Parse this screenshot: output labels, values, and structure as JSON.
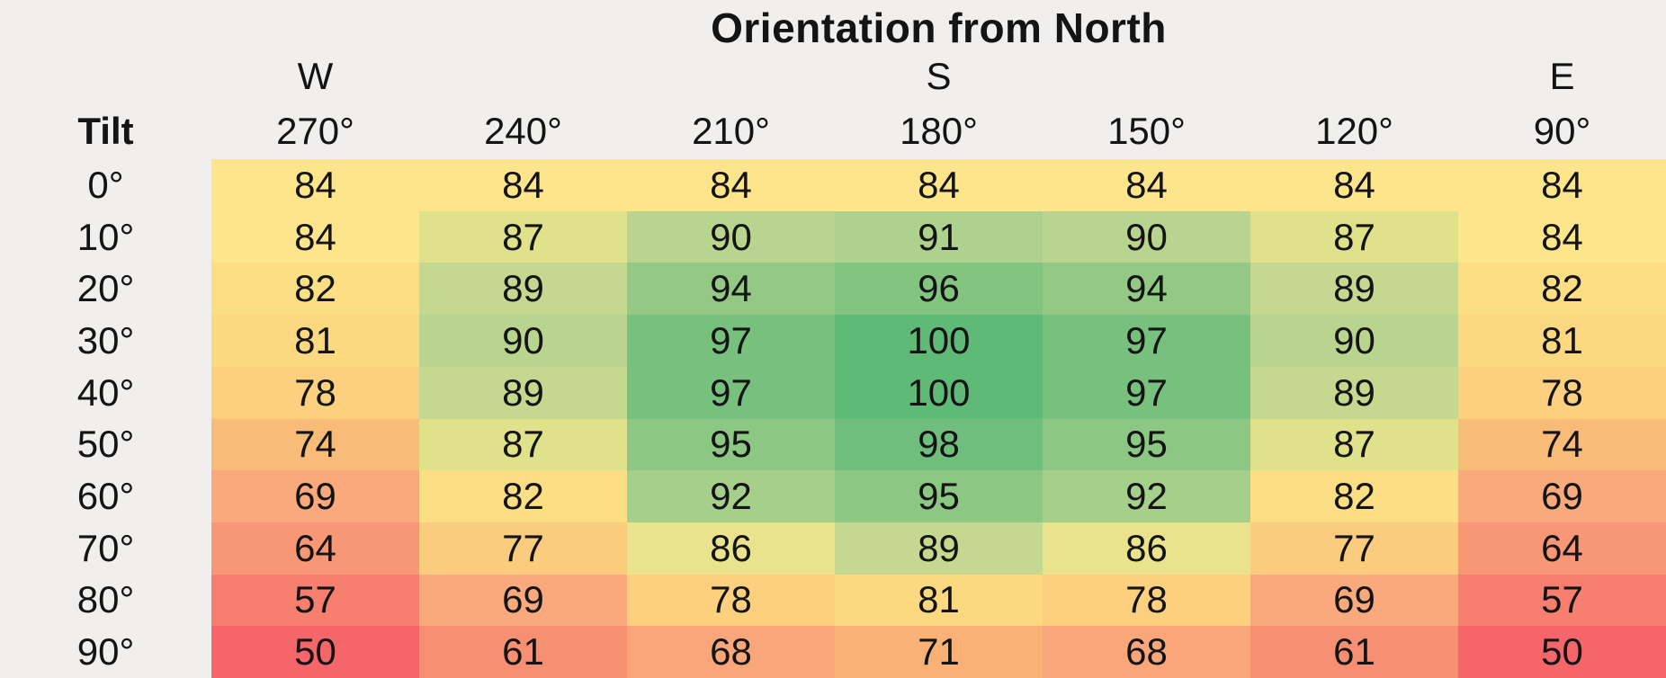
{
  "title": "Orientation from North",
  "header": {
    "tilt": "Tilt"
  },
  "compass": {
    "w": "W",
    "s": "S",
    "e": "E"
  },
  "columns": [
    "270°",
    "240°",
    "210°",
    "180°",
    "150°",
    "120°",
    "90°"
  ],
  "rows": [
    {
      "tilt": "0°",
      "values": [
        84,
        84,
        84,
        84,
        84,
        84,
        84
      ]
    },
    {
      "tilt": "10°",
      "values": [
        84,
        87,
        90,
        91,
        90,
        87,
        84
      ]
    },
    {
      "tilt": "20°",
      "values": [
        82,
        89,
        94,
        96,
        94,
        89,
        82
      ]
    },
    {
      "tilt": "30°",
      "values": [
        81,
        90,
        97,
        100,
        97,
        90,
        81
      ]
    },
    {
      "tilt": "40°",
      "values": [
        78,
        89,
        97,
        100,
        97,
        89,
        78
      ]
    },
    {
      "tilt": "50°",
      "values": [
        74,
        87,
        95,
        98,
        95,
        87,
        74
      ]
    },
    {
      "tilt": "60°",
      "values": [
        69,
        82,
        92,
        95,
        92,
        82,
        69
      ]
    },
    {
      "tilt": "70°",
      "values": [
        64,
        77,
        86,
        89,
        86,
        77,
        64
      ]
    },
    {
      "tilt": "80°",
      "values": [
        57,
        69,
        78,
        81,
        78,
        69,
        57
      ]
    },
    {
      "tilt": "90°",
      "values": [
        50,
        61,
        68,
        71,
        68,
        61,
        50
      ]
    }
  ],
  "colors": {
    "background": "#f0efed",
    "text": "#141414",
    "value_map": {
      "50": "#f5666b",
      "57": "#f67f70",
      "61": "#f78f72",
      "64": "#f79775",
      "68": "#f9a77a",
      "69": "#f9a97b",
      "71": "#f9b176",
      "74": "#f9bc78",
      "77": "#fbcc7e",
      "78": "#fcd07e",
      "81": "#fcd981",
      "82": "#fcdf85",
      "84": "#fde58b",
      "86": "#e8e38c",
      "87": "#dfe18b",
      "89": "#c4d98f",
      "90": "#b8d48e",
      "91": "#aed28d",
      "92": "#a5cf8a",
      "94": "#93c985",
      "95": "#8cc783",
      "96": "#83c481",
      "97": "#77c07e",
      "98": "#6fbe7d",
      "100": "#5fba78"
    }
  },
  "chart_data": {
    "type": "heatmap",
    "title": "Orientation from North",
    "xlabel": "Orientation from North",
    "ylabel": "Tilt",
    "x_ticks": [
      "270°",
      "240°",
      "210°",
      "180°",
      "150°",
      "120°",
      "90°"
    ],
    "x_compass_labels": [
      "W",
      "",
      "",
      "S",
      "",
      "",
      "E"
    ],
    "y_ticks": [
      "0°",
      "10°",
      "20°",
      "30°",
      "40°",
      "50°",
      "60°",
      "70°",
      "80°",
      "90°"
    ],
    "values": [
      [
        84,
        84,
        84,
        84,
        84,
        84,
        84
      ],
      [
        84,
        87,
        90,
        91,
        90,
        87,
        84
      ],
      [
        82,
        89,
        94,
        96,
        94,
        89,
        82
      ],
      [
        81,
        90,
        97,
        100,
        97,
        90,
        81
      ],
      [
        78,
        89,
        97,
        100,
        97,
        89,
        78
      ],
      [
        74,
        87,
        95,
        98,
        95,
        87,
        74
      ],
      [
        69,
        82,
        92,
        95,
        92,
        82,
        69
      ],
      [
        64,
        77,
        86,
        89,
        86,
        77,
        64
      ],
      [
        57,
        69,
        78,
        81,
        78,
        69,
        57
      ],
      [
        50,
        61,
        68,
        71,
        68,
        61,
        50
      ]
    ],
    "value_range": [
      50,
      100
    ],
    "colormap": "red-yellow-green",
    "legend": "none",
    "grid": "off"
  }
}
